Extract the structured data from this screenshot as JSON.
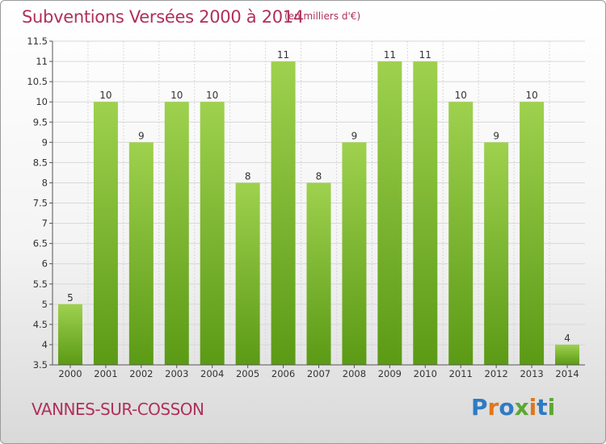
{
  "header": {
    "title": "Subventions Versées 2000 à 2014",
    "unit": "(en milliers d'€)"
  },
  "footer": {
    "commune": "VANNES-SUR-COSSON",
    "logo_text": "Proxiti"
  },
  "colors": {
    "title": "#b0305a",
    "bar_top": "#9ed14e",
    "bar_bottom": "#5b9a15",
    "grid": "#d8d8d8"
  },
  "chart_data": {
    "type": "bar",
    "title": "Subventions Versées 2000 à 2014",
    "subtitle": "(en milliers d'€)",
    "xlabel": "",
    "ylabel": "",
    "categories": [
      "2000",
      "2001",
      "2002",
      "2003",
      "2004",
      "2005",
      "2006",
      "2007",
      "2008",
      "2009",
      "2010",
      "2011",
      "2012",
      "2013",
      "2014"
    ],
    "values": [
      5,
      10,
      9,
      10,
      10,
      8,
      11,
      8,
      9,
      11,
      11,
      10,
      9,
      10,
      4
    ],
    "value_labels": [
      "5",
      "10",
      "9",
      "10",
      "10",
      "8",
      "11",
      "8",
      "9",
      "11",
      "11",
      "10",
      "9",
      "10",
      "4"
    ],
    "ylim": [
      3.5,
      11.5
    ],
    "yticks": [
      3.5,
      4,
      4.5,
      5,
      5.5,
      6,
      6.5,
      7,
      7.5,
      8,
      8.5,
      9,
      9.5,
      10,
      10.5,
      11,
      11.5
    ],
    "ytick_labels": [
      "3.5",
      "4",
      "4.5",
      "5",
      "5.5",
      "6",
      "6.5",
      "7",
      "7.5",
      "8",
      "8.5",
      "9",
      "9.5",
      "10",
      "10.5",
      "11",
      "11.5"
    ],
    "grid": true,
    "legend": "none"
  }
}
